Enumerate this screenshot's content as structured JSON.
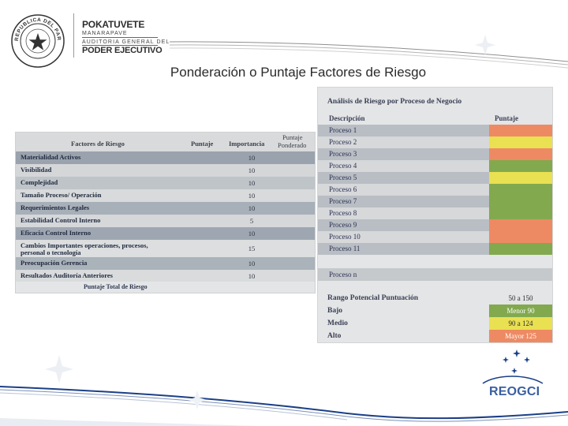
{
  "logo": {
    "line1": "POKATUVETE",
    "line2": "MANARAPAVE",
    "line3": "AUDITORIA GENERAL DEL",
    "line4": "PODER EJECUTIVO",
    "seal_text": "REPUBLICA DEL PARAGUAY"
  },
  "title": "Ponderación o Puntaje Factores de Riesgo",
  "left_table": {
    "headers": {
      "factor": "Factores de Riesgo",
      "puntaje": "Puntaje",
      "importancia": "Importancia",
      "ponderado_l1": "Puntaje",
      "ponderado_l2": "Ponderado"
    },
    "rows": [
      {
        "label": "Materialidad Activos",
        "importance": "10"
      },
      {
        "label": "Visibilidad",
        "importance": "10"
      },
      {
        "label": "Complejidad",
        "importance": "10"
      },
      {
        "label": "Tamaño Proceso/ Operación",
        "importance": "10"
      },
      {
        "label": "Requerimientos Legales",
        "importance": "10"
      },
      {
        "label": "Estabilidad Control Interno",
        "importance": "5"
      },
      {
        "label": "Eficacia Control Interno",
        "importance": "10"
      },
      {
        "label": "Cambios Importantes operaciones, procesos,",
        "label2": "personal o tecnología",
        "importance": "15"
      },
      {
        "label": "Preocupación Gerencia",
        "importance": "10"
      },
      {
        "label": "Resultados Auditoría Anteriores",
        "importance": "10"
      }
    ],
    "total_label": "Puntaje Total de Riesgo"
  },
  "right_table": {
    "title": "Análisis de Riesgo por Proceso de Negocio",
    "header_desc": "Descripción",
    "header_score": "Puntaje",
    "processes": [
      {
        "label": "Proceso 1",
        "color": "#ee8a63"
      },
      {
        "label": "Proceso 2",
        "color": "#e9e052"
      },
      {
        "label": "Proceso 3",
        "color": "#ee8a63"
      },
      {
        "label": "Proceso 4",
        "color": "#82a94e"
      },
      {
        "label": "Proceso 5",
        "color": "#e9e052"
      },
      {
        "label": "Proceso 6",
        "color": "#82a94e"
      },
      {
        "label": "Proceso 7",
        "color": "#82a94e"
      },
      {
        "label": "Proceso 8",
        "color": "#82a94e"
      },
      {
        "label": "Proceso 9",
        "color": "#ee8a63"
      },
      {
        "label": "Proceso 10",
        "color": "#ee8a63"
      },
      {
        "label": "Proceso 11",
        "color": "#82a94e"
      }
    ],
    "proceso_n": "Proceso n",
    "ranges": [
      {
        "label": "Rango Potencial Puntuación",
        "value": "50 a 150",
        "color": "#e3e5e6"
      },
      {
        "label": "Bajo",
        "value": "Menor 90",
        "color": "#82a94e"
      },
      {
        "label": "Medio",
        "value": "90 a 124",
        "color": "#e9e052"
      },
      {
        "label": "Alto",
        "value": "Mayor 125",
        "color": "#ee8a63"
      }
    ]
  },
  "footer_logo": "REOGCI"
}
